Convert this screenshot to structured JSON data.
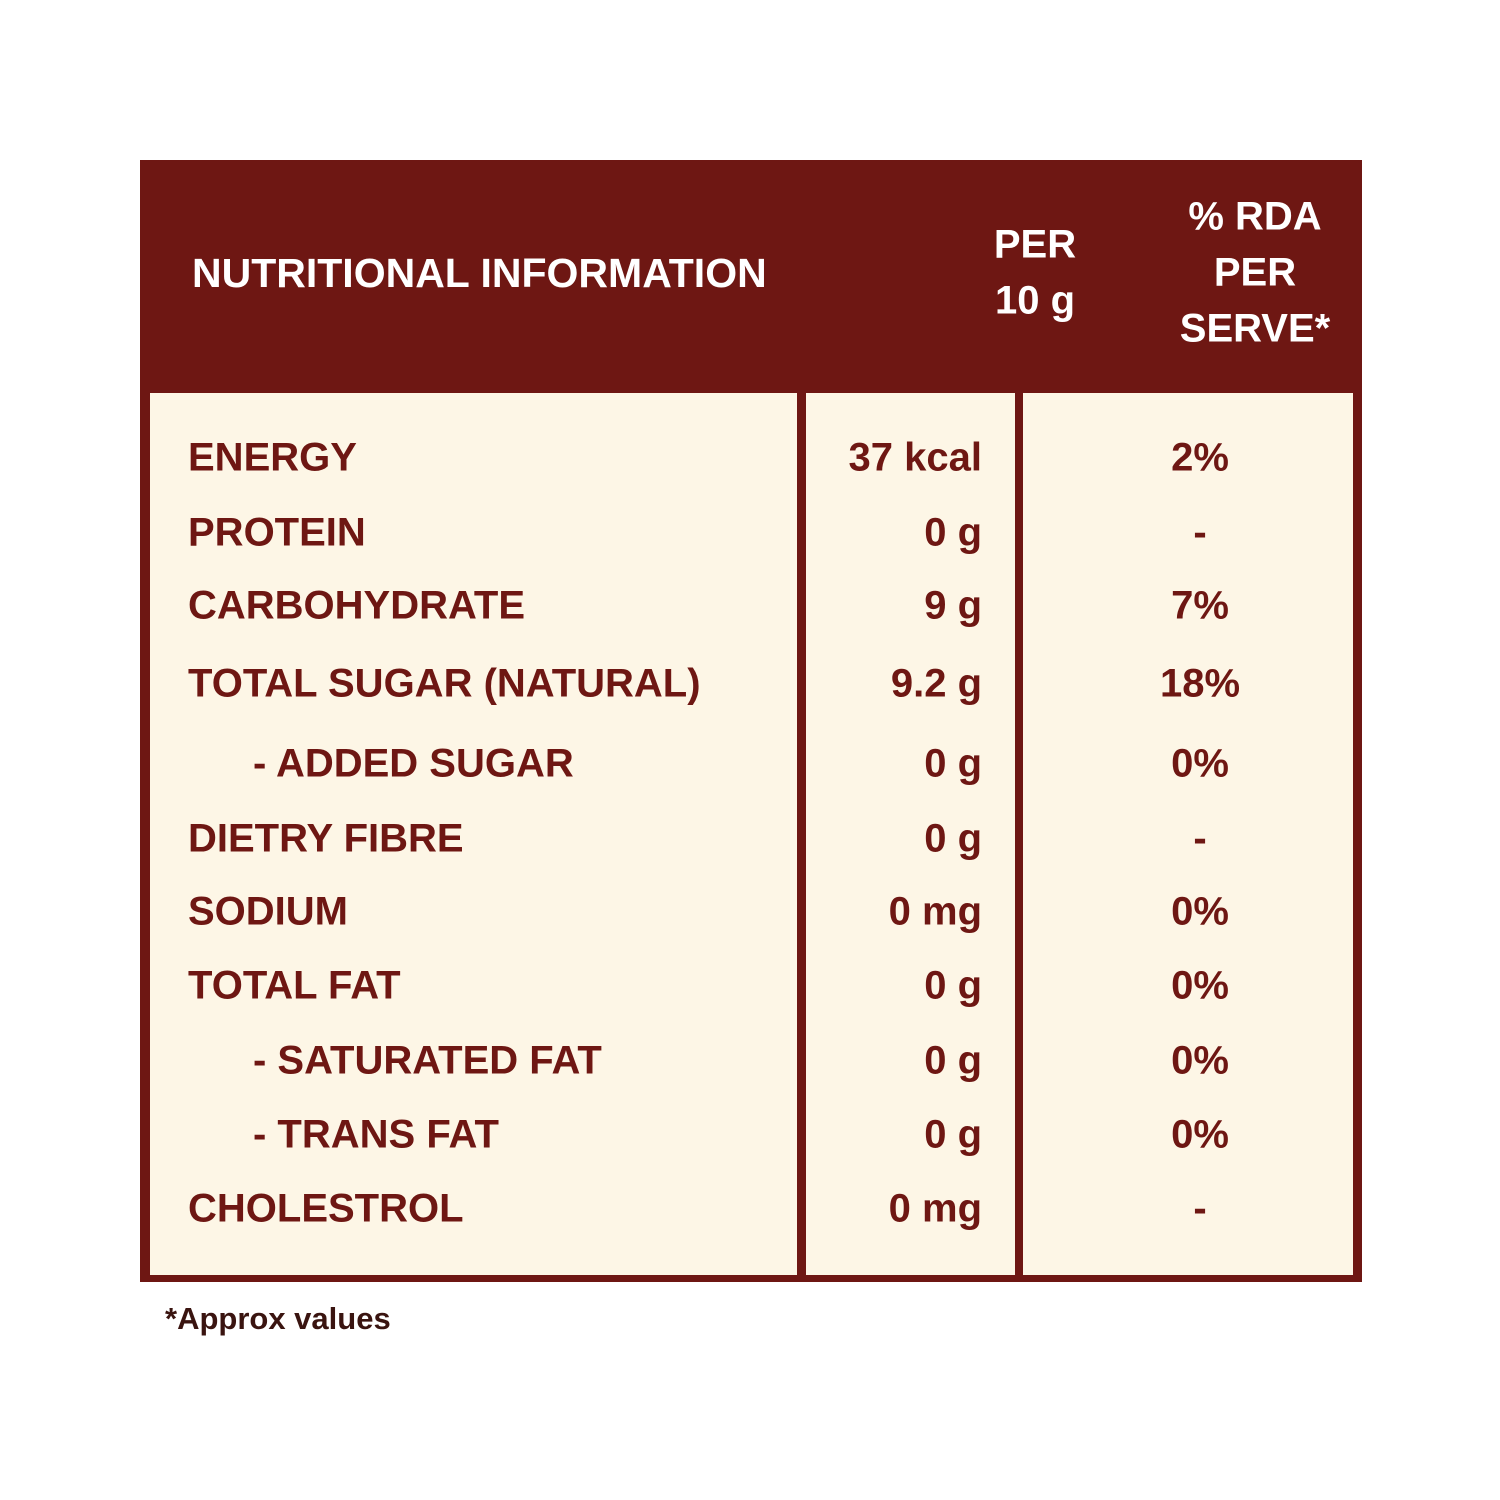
{
  "header": {
    "title": "NUTRITIONAL INFORMATION",
    "columns": [
      [
        "PER",
        "10 g"
      ],
      [
        "% RDA",
        "PER",
        "SERVE*"
      ]
    ]
  },
  "table": {
    "rows": [
      [
        "ENERGY",
        "37 kcal",
        "2%"
      ],
      [
        "PROTEIN",
        "0 g",
        "-"
      ],
      [
        "CARBOHYDRATE",
        "9 g",
        "7%"
      ],
      [
        "TOTAL SUGAR (NATURAL)",
        "9.2 g",
        "18%"
      ],
      [
        "- ADDED SUGAR",
        "0 g",
        "0%"
      ],
      [
        "DIETRY FIBRE",
        "0 g",
        "-"
      ],
      [
        "SODIUM",
        "0 mg",
        "0%"
      ],
      [
        "TOTAL FAT",
        "0 g",
        "0%"
      ],
      [
        "- SATURATED FAT",
        "0 g",
        "0%"
      ],
      [
        "- TRANS FAT",
        "0 g",
        "0%"
      ],
      [
        "CHOLESTROL",
        "0 mg",
        "-"
      ]
    ]
  },
  "footnote": "*Approx values"
}
